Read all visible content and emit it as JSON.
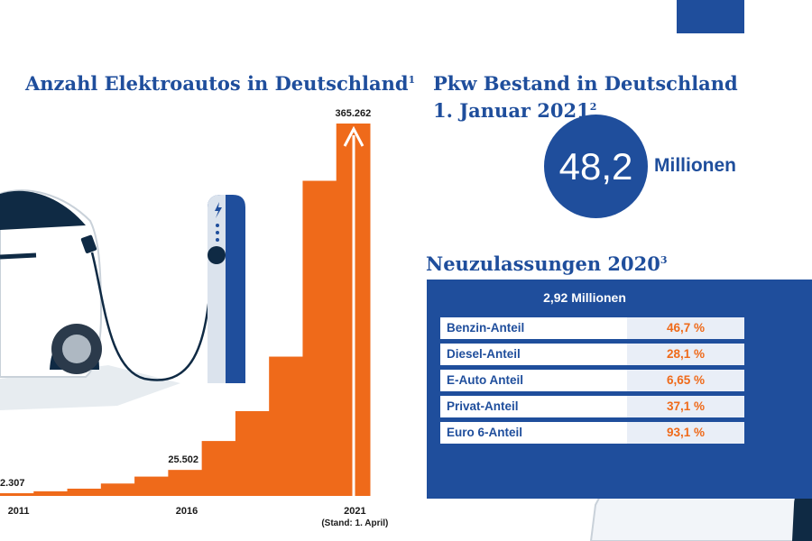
{
  "chart_data": {
    "type": "bar",
    "title": "Anzahl Elektroautos in Deutschland",
    "title_footnote": "1",
    "categories": [
      "2011",
      "2012",
      "2013",
      "2014",
      "2015",
      "2016",
      "2017",
      "2018",
      "2019",
      "2020",
      "2021"
    ],
    "values": [
      2307,
      4541,
      7114,
      12156,
      18948,
      25502,
      53861,
      83175,
      136617,
      309083,
      365262
    ],
    "tick_labels": [
      {
        "category": "2011",
        "label": "2011"
      },
      {
        "category": "2016",
        "label": "2016"
      },
      {
        "category": "2021",
        "label": "2021"
      }
    ],
    "tick_note": "(Stand: 1. April)",
    "data_labels": [
      {
        "category": "2011",
        "label": "2.307"
      },
      {
        "category": "2016",
        "label": "25.502"
      },
      {
        "category": "2021",
        "label": "365.262"
      }
    ],
    "bar_color": "#ef6a1a"
  },
  "pkw": {
    "title_line1": "Pkw Bestand in Deutschland",
    "title_line2": "1. Januar 2021",
    "footnote": "2",
    "value": "48,2",
    "unit": "Millionen"
  },
  "neuzulassungen": {
    "title": "Neuzulassungen 2020",
    "footnote": "3",
    "total": "2,92 Millionen",
    "rows": [
      {
        "label": "Benzin-Anteil",
        "value": "46,7 %"
      },
      {
        "label": "Diesel-Anteil",
        "value": "28,1 %"
      },
      {
        "label": "E-Auto Anteil",
        "value": "6,65 %"
      },
      {
        "label": "Privat-Anteil",
        "value": "37,1 %"
      },
      {
        "label": "Euro 6-Anteil",
        "value": "93,1 %"
      }
    ]
  },
  "colors": {
    "brand_blue": "#1f4e9c",
    "accent_orange": "#ef6a1a",
    "dark_navy": "#0f2a44"
  },
  "icons": {
    "logo": "logo-icon",
    "car": "car-illustration",
    "charger": "charging-station-icon",
    "arrow": "up-arrow-icon"
  }
}
